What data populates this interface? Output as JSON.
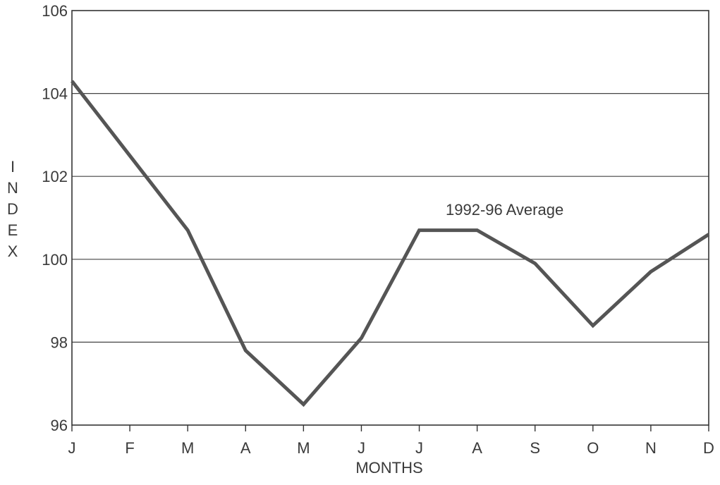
{
  "chart_data": {
    "type": "line",
    "xlabel": "MONTHS",
    "ylabel": "INDEX",
    "categories": [
      "J",
      "F",
      "M",
      "A",
      "M",
      "J",
      "J",
      "A",
      "S",
      "O",
      "N",
      "D"
    ],
    "yticks": [
      "96",
      "98",
      "100",
      "102",
      "104",
      "106"
    ],
    "ylim": [
      96,
      106
    ],
    "grid": true,
    "series": [
      {
        "name": "1992-96 Average",
        "values": [
          104.3,
          102.5,
          100.7,
          97.8,
          96.5,
          98.1,
          100.7,
          100.7,
          99.9,
          98.4,
          99.7,
          100.6
        ]
      }
    ],
    "annotation": "1992-96 Average",
    "colors": {
      "line": "#555555",
      "grid": "#444444",
      "frame": "#333333"
    }
  }
}
